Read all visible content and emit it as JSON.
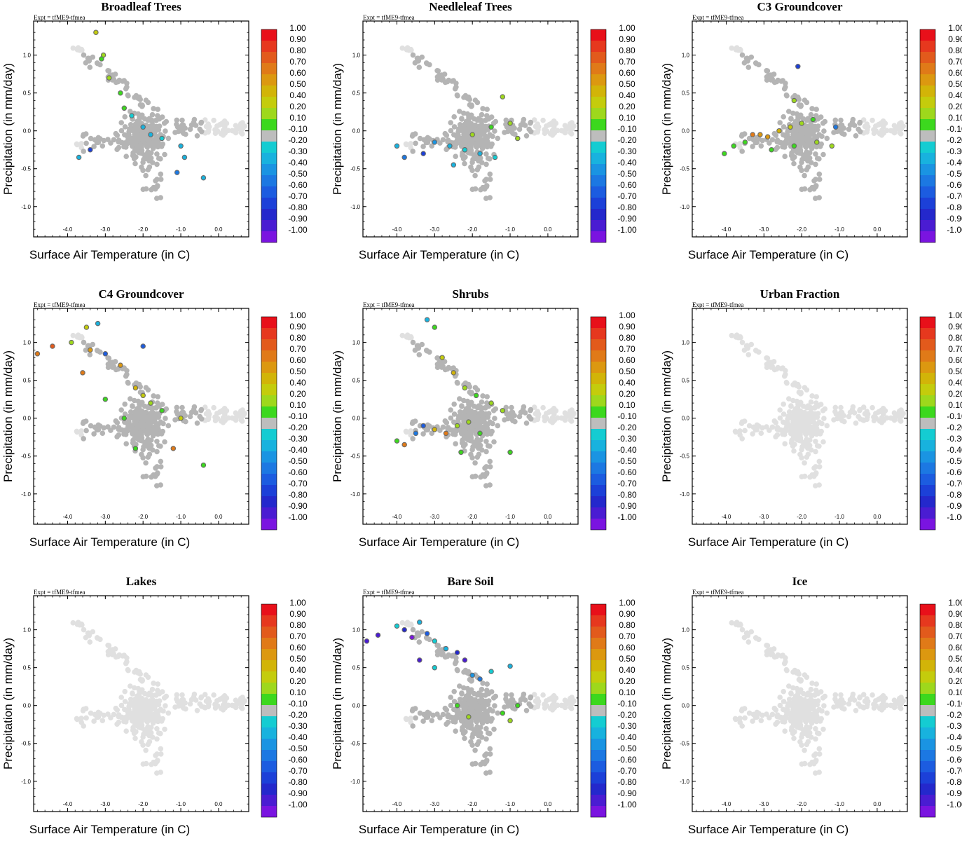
{
  "figure": {
    "expt_label": "Expt = tfME9-tfmea",
    "xlabel": "Surface Air Temperature (in C)",
    "ylabel": "Precipitation (in mm/day)",
    "x_ticks": [
      "-4.0",
      "-3.0",
      "-2.0",
      "-1.0",
      "0.0"
    ],
    "y_ticks": [
      "1.0",
      "0.5",
      "0.0",
      "-0.5",
      "-1.0"
    ],
    "colorbar_labels": [
      "1.00",
      "0.90",
      "0.80",
      "0.70",
      "0.60",
      "0.50",
      "0.40",
      "0.20",
      "0.10",
      "-0.10",
      "-0.20",
      "-0.30",
      "-0.40",
      "-0.50",
      "-0.60",
      "-0.70",
      "-0.80",
      "-0.90",
      "-1.00"
    ],
    "colorbar_colors": [
      "#e8101a",
      "#e6381e",
      "#e25a1c",
      "#e07a18",
      "#dc9810",
      "#d2b408",
      "#c4cc0c",
      "#9ed81c",
      "#3cd81e",
      "#bdbdbd",
      "#14ccd2",
      "#18b2de",
      "#1a94e2",
      "#1c78e2",
      "#1c5ce0",
      "#1c40d8",
      "#2428cc",
      "#4a1cd2",
      "#7a14e0"
    ],
    "grey_color": "#b4b4b4",
    "light_color": "#e0e0e0"
  },
  "chart_data": [
    {
      "type": "scatter",
      "title": "Broadleaf Trees",
      "xlim": [
        -4.9,
        0.8
      ],
      "ylim": [
        -1.4,
        1.45
      ],
      "color_scale": [
        -1.0,
        1.0
      ],
      "highlight_category": "Broadleaf Trees",
      "colored_points": [
        {
          "x": -3.25,
          "y": 1.3,
          "c": 0.45
        },
        {
          "x": -3.05,
          "y": 1.0,
          "c": 0.35
        },
        {
          "x": -3.1,
          "y": 0.95,
          "c": 0.15
        },
        {
          "x": -2.9,
          "y": 0.7,
          "c": 0.2
        },
        {
          "x": -2.6,
          "y": 0.5,
          "c": 0.15
        },
        {
          "x": -2.5,
          "y": 0.3,
          "c": 0.12
        },
        {
          "x": -2.3,
          "y": 0.2,
          "c": -0.2
        },
        {
          "x": -2.0,
          "y": 0.05,
          "c": -0.25
        },
        {
          "x": -1.8,
          "y": -0.05,
          "c": -0.3
        },
        {
          "x": -1.5,
          "y": -0.1,
          "c": -0.2
        },
        {
          "x": -1.0,
          "y": -0.2,
          "c": -0.25
        },
        {
          "x": -0.9,
          "y": -0.35,
          "c": -0.3
        },
        {
          "x": -3.4,
          "y": -0.25,
          "c": -0.7
        },
        {
          "x": -3.7,
          "y": -0.35,
          "c": -0.25
        },
        {
          "x": -0.4,
          "y": -0.62,
          "c": -0.25
        },
        {
          "x": -1.1,
          "y": -0.55,
          "c": -0.5
        }
      ]
    },
    {
      "type": "scatter",
      "title": "Needleleaf Trees",
      "xlim": [
        -4.9,
        0.8
      ],
      "ylim": [
        -1.4,
        1.45
      ],
      "color_scale": [
        -1.0,
        1.0
      ],
      "highlight_category": "Needleleaf Trees",
      "colored_points": [
        {
          "x": -1.2,
          "y": 0.45,
          "c": 0.35
        },
        {
          "x": -1.0,
          "y": 0.1,
          "c": 0.2
        },
        {
          "x": -1.5,
          "y": 0.05,
          "c": 0.12
        },
        {
          "x": -2.0,
          "y": -0.05,
          "c": 0.3
        },
        {
          "x": -0.8,
          "y": -0.1,
          "c": 0.35
        },
        {
          "x": -3.3,
          "y": -0.3,
          "c": -0.7
        },
        {
          "x": -3.8,
          "y": -0.35,
          "c": -0.5
        },
        {
          "x": -4.0,
          "y": -0.2,
          "c": -0.25
        },
        {
          "x": -2.6,
          "y": -0.2,
          "c": -0.3
        },
        {
          "x": -2.2,
          "y": -0.25,
          "c": -0.2
        },
        {
          "x": -1.8,
          "y": -0.3,
          "c": -0.25
        },
        {
          "x": -1.4,
          "y": -0.35,
          "c": -0.2
        },
        {
          "x": -2.5,
          "y": -0.45,
          "c": -0.25
        },
        {
          "x": -3.0,
          "y": -0.15,
          "c": -0.4
        }
      ]
    },
    {
      "type": "scatter",
      "title": "C3 Groundcover",
      "xlim": [
        -4.9,
        0.8
      ],
      "ylim": [
        -1.4,
        1.45
      ],
      "color_scale": [
        -1.0,
        1.0
      ],
      "highlight_category": "C3 Groundcover",
      "colored_points": [
        {
          "x": -3.3,
          "y": -0.05,
          "c": 0.7
        },
        {
          "x": -3.1,
          "y": -0.05,
          "c": 0.6
        },
        {
          "x": -2.9,
          "y": -0.08,
          "c": 0.65
        },
        {
          "x": -2.6,
          "y": 0.0,
          "c": 0.55
        },
        {
          "x": -2.3,
          "y": 0.05,
          "c": 0.4
        },
        {
          "x": -2.0,
          "y": 0.1,
          "c": 0.3
        },
        {
          "x": -1.7,
          "y": 0.15,
          "c": 0.15
        },
        {
          "x": -3.5,
          "y": -0.15,
          "c": 0.15
        },
        {
          "x": -3.8,
          "y": -0.2,
          "c": 0.15
        },
        {
          "x": -4.05,
          "y": -0.3,
          "c": 0.12
        },
        {
          "x": -2.8,
          "y": -0.25,
          "c": 0.12
        },
        {
          "x": -2.2,
          "y": -0.2,
          "c": 0.15
        },
        {
          "x": -1.6,
          "y": -0.15,
          "c": 0.2
        },
        {
          "x": -1.2,
          "y": -0.2,
          "c": 0.3
        },
        {
          "x": -2.1,
          "y": 0.85,
          "c": -0.7
        },
        {
          "x": -2.2,
          "y": 0.4,
          "c": 0.2
        },
        {
          "x": -1.1,
          "y": 0.05,
          "c": -0.5
        }
      ]
    },
    {
      "type": "scatter",
      "title": "C4 Groundcover",
      "xlim": [
        -4.9,
        0.8
      ],
      "ylim": [
        -1.4,
        1.45
      ],
      "color_scale": [
        -1.0,
        1.0
      ],
      "highlight_category": "C4 Groundcover",
      "colored_points": [
        {
          "x": -4.8,
          "y": 0.85,
          "c": 0.75
        },
        {
          "x": -4.4,
          "y": 0.95,
          "c": 0.8
        },
        {
          "x": -3.9,
          "y": 1.0,
          "c": 0.3
        },
        {
          "x": -3.5,
          "y": 1.2,
          "c": 0.45
        },
        {
          "x": -3.2,
          "y": 1.25,
          "c": -0.25
        },
        {
          "x": -3.4,
          "y": 0.9,
          "c": 0.65
        },
        {
          "x": -3.6,
          "y": 0.6,
          "c": 0.75
        },
        {
          "x": -3.0,
          "y": 0.85,
          "c": -0.6
        },
        {
          "x": -2.6,
          "y": 0.7,
          "c": 0.65
        },
        {
          "x": -2.2,
          "y": 0.4,
          "c": 0.5
        },
        {
          "x": -2.0,
          "y": 0.3,
          "c": 0.45
        },
        {
          "x": -1.8,
          "y": 0.2,
          "c": 0.35
        },
        {
          "x": -1.5,
          "y": 0.1,
          "c": 0.15
        },
        {
          "x": -1.0,
          "y": 0.0,
          "c": 0.45
        },
        {
          "x": -2.5,
          "y": 0.0,
          "c": 0.15
        },
        {
          "x": -3.0,
          "y": 0.25,
          "c": 0.15
        },
        {
          "x": -2.2,
          "y": -0.4,
          "c": 0.12
        },
        {
          "x": -1.2,
          "y": -0.4,
          "c": 0.7
        },
        {
          "x": -0.4,
          "y": -0.62,
          "c": 0.12
        },
        {
          "x": -2.0,
          "y": 0.95,
          "c": -0.6
        }
      ]
    },
    {
      "type": "scatter",
      "title": "Shrubs",
      "xlim": [
        -4.9,
        0.8
      ],
      "ylim": [
        -1.4,
        1.45
      ],
      "color_scale": [
        -1.0,
        1.0
      ],
      "highlight_category": "Shrubs",
      "colored_points": [
        {
          "x": -3.0,
          "y": 1.2,
          "c": 0.15
        },
        {
          "x": -3.2,
          "y": 1.3,
          "c": -0.25
        },
        {
          "x": -2.8,
          "y": 0.8,
          "c": 0.45
        },
        {
          "x": -2.5,
          "y": 0.6,
          "c": 0.5
        },
        {
          "x": -2.2,
          "y": 0.4,
          "c": 0.2
        },
        {
          "x": -1.9,
          "y": 0.3,
          "c": 0.15
        },
        {
          "x": -1.5,
          "y": 0.2,
          "c": 0.3
        },
        {
          "x": -1.2,
          "y": 0.1,
          "c": 0.2
        },
        {
          "x": -3.3,
          "y": -0.1,
          "c": -0.6
        },
        {
          "x": -3.0,
          "y": -0.15,
          "c": 0.5
        },
        {
          "x": -2.7,
          "y": -0.2,
          "c": 0.7
        },
        {
          "x": -2.4,
          "y": -0.1,
          "c": 0.35
        },
        {
          "x": -2.1,
          "y": -0.05,
          "c": 0.2
        },
        {
          "x": -1.8,
          "y": -0.2,
          "c": 0.12
        },
        {
          "x": -3.5,
          "y": -0.2,
          "c": -0.5
        },
        {
          "x": -4.0,
          "y": -0.3,
          "c": 0.12
        },
        {
          "x": -3.8,
          "y": -0.35,
          "c": 0.75
        },
        {
          "x": -2.3,
          "y": -0.45,
          "c": 0.15
        },
        {
          "x": -1.0,
          "y": -0.45,
          "c": 0.12
        }
      ]
    },
    {
      "type": "scatter",
      "title": "Urban Fraction",
      "xlim": [
        -4.9,
        0.8
      ],
      "ylim": [
        -1.4,
        1.45
      ],
      "color_scale": [
        -1.0,
        1.0
      ],
      "highlight_category": "Urban Fraction",
      "colored_points": []
    },
    {
      "type": "scatter",
      "title": "Lakes",
      "xlim": [
        -4.9,
        0.8
      ],
      "ylim": [
        -1.4,
        1.45
      ],
      "color_scale": [
        -1.0,
        1.0
      ],
      "highlight_category": "Lakes",
      "colored_points": []
    },
    {
      "type": "scatter",
      "title": "Bare Soil",
      "xlim": [
        -4.9,
        0.8
      ],
      "ylim": [
        -1.4,
        1.45
      ],
      "color_scale": [
        -1.0,
        1.0
      ],
      "highlight_category": "Bare Soil",
      "colored_points": [
        {
          "x": -4.8,
          "y": 0.85,
          "c": -0.85
        },
        {
          "x": -4.5,
          "y": 0.93,
          "c": -0.9
        },
        {
          "x": -4.0,
          "y": 1.05,
          "c": -0.2
        },
        {
          "x": -3.8,
          "y": 1.0,
          "c": -0.75
        },
        {
          "x": -3.6,
          "y": 0.9,
          "c": -0.95
        },
        {
          "x": -3.4,
          "y": 1.1,
          "c": -0.3
        },
        {
          "x": -3.2,
          "y": 0.95,
          "c": -0.6
        },
        {
          "x": -3.0,
          "y": 0.85,
          "c": -0.2
        },
        {
          "x": -2.7,
          "y": 0.75,
          "c": -0.3
        },
        {
          "x": -2.4,
          "y": 0.7,
          "c": -0.8
        },
        {
          "x": -2.2,
          "y": 0.6,
          "c": -0.85
        },
        {
          "x": -3.4,
          "y": 0.6,
          "c": -0.9
        },
        {
          "x": -3.0,
          "y": 0.5,
          "c": -0.2
        },
        {
          "x": -2.0,
          "y": 0.4,
          "c": -0.4
        },
        {
          "x": -1.8,
          "y": 0.35,
          "c": -0.5
        },
        {
          "x": -1.5,
          "y": 0.45,
          "c": -0.2
        },
        {
          "x": -1.0,
          "y": 0.52,
          "c": -0.3
        },
        {
          "x": -2.4,
          "y": 0.0,
          "c": 0.12
        },
        {
          "x": -2.1,
          "y": -0.15,
          "c": 0.3
        },
        {
          "x": -1.2,
          "y": -0.1,
          "c": 0.12
        },
        {
          "x": -0.8,
          "y": 0.0,
          "c": 0.12
        },
        {
          "x": -1.0,
          "y": -0.2,
          "c": 0.2
        }
      ]
    },
    {
      "type": "scatter",
      "title": "Ice",
      "xlim": [
        -4.9,
        0.8
      ],
      "ylim": [
        -1.4,
        1.45
      ],
      "color_scale": [
        -1.0,
        1.0
      ],
      "highlight_category": "Ice",
      "colored_points": []
    }
  ]
}
